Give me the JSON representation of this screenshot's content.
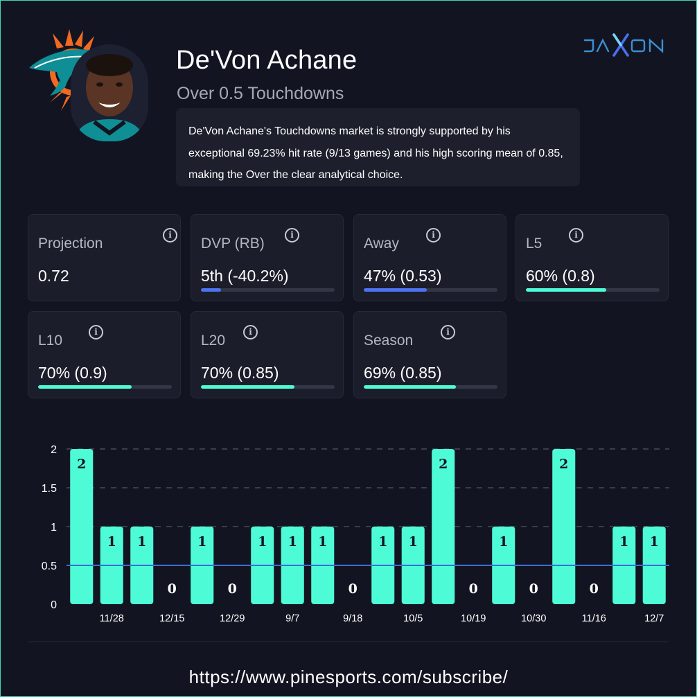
{
  "player": {
    "name": "De'Von Achane",
    "market": "Over 0.5 Touchdowns",
    "summary": "De'Von Achane's Touchdowns market is strongly supported by his exceptional 69.23% hit rate (9/13 games) and his high scoring mean of 0.85, making the Over the clear analytical choice."
  },
  "brand": {
    "logo_text": "JAXON",
    "color": "#3b8fd4"
  },
  "team": {
    "logo": "dolphins-logo",
    "colors": [
      "#0f8e96",
      "#f26a21"
    ]
  },
  "colors": {
    "background": "#121521",
    "card": "#1b1e2a",
    "accent_green": "#4dfcd7",
    "accent_blue": "#4d73f0",
    "threshold_line": "#3a6fd8"
  },
  "stats": [
    {
      "label": "Projection",
      "value": "0.72",
      "bar": null,
      "bar_color": null
    },
    {
      "label": "DVP (RB)",
      "value": "5th (-40.2%)",
      "bar": 0.15,
      "bar_color": "#4d73f0"
    },
    {
      "label": "Away",
      "value": "47% (0.53)",
      "bar": 0.47,
      "bar_color": "#4d73f0"
    },
    {
      "label": "L5",
      "value": "60% (0.8)",
      "bar": 0.6,
      "bar_color": "#4dfcd7"
    },
    {
      "label": "L10",
      "value": "70% (0.9)",
      "bar": 0.7,
      "bar_color": "#4dfcd7"
    },
    {
      "label": "L20",
      "value": "70% (0.85)",
      "bar": 0.7,
      "bar_color": "#4dfcd7"
    },
    {
      "label": "Season",
      "value": "69% (0.85)",
      "bar": 0.69,
      "bar_color": "#4dfcd7"
    }
  ],
  "chart_data": {
    "type": "bar",
    "values": [
      2,
      1,
      1,
      0,
      1,
      0,
      1,
      1,
      1,
      0,
      1,
      1,
      2,
      0,
      1,
      0,
      2,
      0,
      1,
      1
    ],
    "x_tick_labels": [
      "",
      "11/28",
      "",
      "12/15",
      "",
      "12/29",
      "",
      "9/7",
      "",
      "9/18",
      "",
      "10/5",
      "",
      "10/19",
      "",
      "10/30",
      "",
      "11/16",
      "",
      "12/7"
    ],
    "y_ticks": [
      "0",
      "0.5",
      "1",
      "1.5",
      "2"
    ],
    "ylim": [
      0,
      2
    ],
    "threshold": 0.5,
    "bar_color": "#4dfcd7",
    "grid": "dashed horizontal"
  },
  "footer": {
    "url": "https://www.pinesports.com/subscribe/"
  }
}
